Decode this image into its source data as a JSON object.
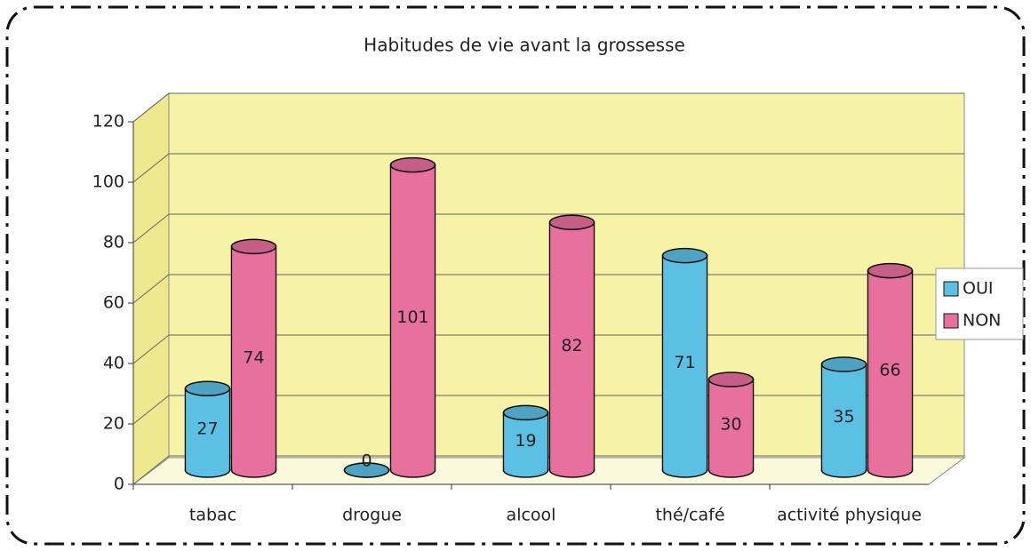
{
  "chart_data": {
    "type": "bar3d",
    "title": "Habitudes de vie avant la grossesse",
    "categories": [
      "tabac",
      "drogue",
      "alcool",
      "thé/café",
      "activité physique"
    ],
    "series": [
      {
        "name": "OUI",
        "color": "#5cc0e4",
        "values": [
          27,
          0,
          19,
          71,
          35
        ]
      },
      {
        "name": "NON",
        "color": "#e8709f",
        "values": [
          74,
          101,
          82,
          30,
          66
        ]
      }
    ],
    "ylim": [
      0,
      120
    ],
    "yticks": [
      0,
      20,
      40,
      60,
      80,
      100,
      120
    ],
    "grid": true,
    "legend": "right"
  }
}
